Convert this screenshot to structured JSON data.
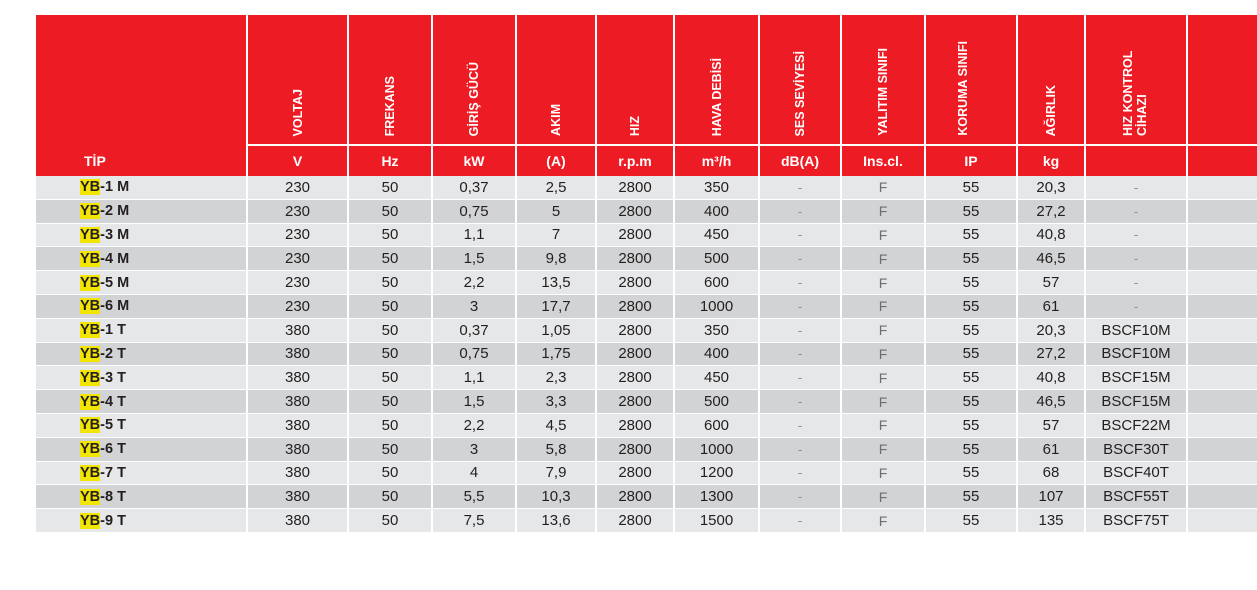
{
  "header": {
    "tip": "TİP",
    "columns": [
      {
        "label": "VOLTAJ",
        "unit": "V"
      },
      {
        "label": "FREKANS",
        "unit": "Hz"
      },
      {
        "label": "GİRİŞ GÜCÜ",
        "unit": "kW"
      },
      {
        "label": "AKIM",
        "unit": "(A)"
      },
      {
        "label": "HIZ",
        "unit": "r.p.m"
      },
      {
        "label": "HAVA DEBİSİ",
        "unit": "m³/h"
      },
      {
        "label": "SES SEVİYESİ",
        "unit": "dB(A)"
      },
      {
        "label": "YALITIM SINIFI",
        "unit": "Ins.cl."
      },
      {
        "label": "KORUMA SINIFI",
        "unit": "IP"
      },
      {
        "label": "AĞIRLIK",
        "unit": "kg"
      },
      {
        "label": "HIZ KONTROL CİHAZI",
        "unit": ""
      }
    ]
  },
  "rows": [
    {
      "prefix": "YB",
      "suffix": "-1 M",
      "cells": [
        "230",
        "50",
        "0,37",
        "2,5",
        "2800",
        "350",
        "-",
        "F",
        "55",
        "20,3",
        "-"
      ]
    },
    {
      "prefix": "YB",
      "suffix": "-2 M",
      "cells": [
        "230",
        "50",
        "0,75",
        "5",
        "2800",
        "400",
        "-",
        "F",
        "55",
        "27,2",
        "-"
      ]
    },
    {
      "prefix": "YB",
      "suffix": "-3 M",
      "cells": [
        "230",
        "50",
        "1,1",
        "7",
        "2800",
        "450",
        "-",
        "F",
        "55",
        "40,8",
        "-"
      ]
    },
    {
      "prefix": "YB",
      "suffix": "-4 M",
      "cells": [
        "230",
        "50",
        "1,5",
        "9,8",
        "2800",
        "500",
        "-",
        "F",
        "55",
        "46,5",
        "-"
      ]
    },
    {
      "prefix": "YB",
      "suffix": "-5 M",
      "cells": [
        "230",
        "50",
        "2,2",
        "13,5",
        "2800",
        "600",
        "-",
        "F",
        "55",
        "57",
        "-"
      ]
    },
    {
      "prefix": "YB",
      "suffix": "-6 M",
      "cells": [
        "230",
        "50",
        "3",
        "17,7",
        "2800",
        "1000",
        "-",
        "F",
        "55",
        "61",
        "-"
      ]
    },
    {
      "prefix": "YB",
      "suffix": "-1 T",
      "cells": [
        "380",
        "50",
        "0,37",
        "1,05",
        "2800",
        "350",
        "-",
        "F",
        "55",
        "20,3",
        "BSCF10M"
      ]
    },
    {
      "prefix": "YB",
      "suffix": "-2 T",
      "cells": [
        "380",
        "50",
        "0,75",
        "1,75",
        "2800",
        "400",
        "-",
        "F",
        "55",
        "27,2",
        "BSCF10M"
      ]
    },
    {
      "prefix": "YB",
      "suffix": "-3 T",
      "cells": [
        "380",
        "50",
        "1,1",
        "2,3",
        "2800",
        "450",
        "-",
        "F",
        "55",
        "40,8",
        "BSCF15M"
      ]
    },
    {
      "prefix": "YB",
      "suffix": "-4 T",
      "cells": [
        "380",
        "50",
        "1,5",
        "3,3",
        "2800",
        "500",
        "-",
        "F",
        "55",
        "46,5",
        "BSCF15M"
      ]
    },
    {
      "prefix": "YB",
      "suffix": "-5 T",
      "cells": [
        "380",
        "50",
        "2,2",
        "4,5",
        "2800",
        "600",
        "-",
        "F",
        "55",
        "57",
        "BSCF22M"
      ]
    },
    {
      "prefix": "YB",
      "suffix": "-6 T",
      "cells": [
        "380",
        "50",
        "3",
        "5,8",
        "2800",
        "1000",
        "-",
        "F",
        "55",
        "61",
        "BSCF30T"
      ]
    },
    {
      "prefix": "YB",
      "suffix": "-7 T",
      "cells": [
        "380",
        "50",
        "4",
        "7,9",
        "2800",
        "1200",
        "-",
        "F",
        "55",
        "68",
        "BSCF40T"
      ]
    },
    {
      "prefix": "YB",
      "suffix": "-8 T",
      "cells": [
        "380",
        "50",
        "5,5",
        "10,3",
        "2800",
        "1300",
        "-",
        "F",
        "55",
        "107",
        "BSCF55T"
      ]
    },
    {
      "prefix": "YB",
      "suffix": "-9 T",
      "cells": [
        "380",
        "50",
        "7,5",
        "13,6",
        "2800",
        "1500",
        "-",
        "F",
        "55",
        "135",
        "BSCF75T"
      ]
    }
  ],
  "colors": {
    "header_red": "#ed1c24",
    "row_light": "#e6e7e8",
    "row_dark": "#d1d3d4",
    "highlight": "#f2e600"
  }
}
